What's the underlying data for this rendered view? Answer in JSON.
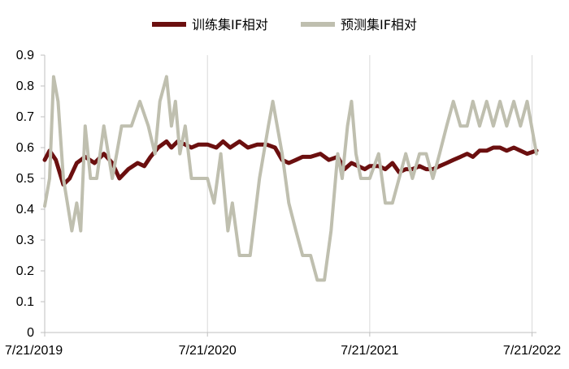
{
  "chart_data": {
    "type": "line",
    "title": "",
    "xlabel": "",
    "ylabel": "",
    "ylim": [
      0,
      0.9
    ],
    "yticks": [
      0,
      0.1,
      0.2,
      0.3,
      0.4,
      0.5,
      0.6,
      0.7,
      0.8,
      0.9
    ],
    "ytick_labels": [
      "0",
      "0.1",
      "0.2",
      "0.3",
      "0.4",
      "0.5",
      "0.6",
      "0.7",
      "0.8",
      "0.9"
    ],
    "xlim": [
      "2019-07-21",
      "2022-07-31"
    ],
    "xticks": [
      "2019-07-21",
      "2020-07-21",
      "2021-07-21",
      "2022-07-21"
    ],
    "xtick_labels": [
      "7/21/2019",
      "7/21/2020",
      "7/21/2021",
      "7/21/2022"
    ],
    "grid": {
      "vertical": true,
      "horizontal": false
    },
    "legend_position": "top-center",
    "series": [
      {
        "name": "训练集IF相对",
        "color": "#6b0f0f",
        "points": [
          [
            "2019-07-21",
            0.56
          ],
          [
            "2019-08-01",
            0.59
          ],
          [
            "2019-08-15",
            0.56
          ],
          [
            "2019-09-01",
            0.48
          ],
          [
            "2019-09-15",
            0.5
          ],
          [
            "2019-10-01",
            0.55
          ],
          [
            "2019-10-20",
            0.57
          ],
          [
            "2019-11-10",
            0.55
          ],
          [
            "2019-12-01",
            0.58
          ],
          [
            "2019-12-20",
            0.55
          ],
          [
            "2020-01-05",
            0.5
          ],
          [
            "2020-01-25",
            0.53
          ],
          [
            "2020-02-15",
            0.55
          ],
          [
            "2020-03-01",
            0.54
          ],
          [
            "2020-03-15",
            0.57
          ],
          [
            "2020-04-01",
            0.6
          ],
          [
            "2020-04-20",
            0.62
          ],
          [
            "2020-05-01",
            0.6
          ],
          [
            "2020-05-15",
            0.62
          ],
          [
            "2020-06-01",
            0.61
          ],
          [
            "2020-06-15",
            0.6
          ],
          [
            "2020-07-01",
            0.61
          ],
          [
            "2020-07-21",
            0.61
          ],
          [
            "2020-08-10",
            0.6
          ],
          [
            "2020-08-25",
            0.62
          ],
          [
            "2020-09-10",
            0.6
          ],
          [
            "2020-10-01",
            0.62
          ],
          [
            "2020-10-20",
            0.6
          ],
          [
            "2020-11-10",
            0.61
          ],
          [
            "2020-12-01",
            0.61
          ],
          [
            "2020-12-20",
            0.6
          ],
          [
            "2021-01-05",
            0.56
          ],
          [
            "2021-01-20",
            0.55
          ],
          [
            "2021-02-05",
            0.56
          ],
          [
            "2021-02-20",
            0.57
          ],
          [
            "2021-03-10",
            0.57
          ],
          [
            "2021-04-01",
            0.58
          ],
          [
            "2021-04-20",
            0.56
          ],
          [
            "2021-05-10",
            0.57
          ],
          [
            "2021-05-25",
            0.53
          ],
          [
            "2021-06-10",
            0.55
          ],
          [
            "2021-06-25",
            0.54
          ],
          [
            "2021-07-10",
            0.53
          ],
          [
            "2021-07-21",
            0.54
          ],
          [
            "2021-08-10",
            0.54
          ],
          [
            "2021-08-25",
            0.53
          ],
          [
            "2021-09-10",
            0.55
          ],
          [
            "2021-09-25",
            0.52
          ],
          [
            "2021-10-10",
            0.53
          ],
          [
            "2021-10-25",
            0.53
          ],
          [
            "2021-11-10",
            0.54
          ],
          [
            "2021-11-25",
            0.53
          ],
          [
            "2021-12-10",
            0.53
          ],
          [
            "2021-12-25",
            0.54
          ],
          [
            "2022-01-10",
            0.55
          ],
          [
            "2022-01-25",
            0.56
          ],
          [
            "2022-02-10",
            0.57
          ],
          [
            "2022-02-25",
            0.58
          ],
          [
            "2022-03-10",
            0.57
          ],
          [
            "2022-03-25",
            0.59
          ],
          [
            "2022-04-10",
            0.59
          ],
          [
            "2022-04-25",
            0.6
          ],
          [
            "2022-05-10",
            0.6
          ],
          [
            "2022-05-25",
            0.59
          ],
          [
            "2022-06-10",
            0.6
          ],
          [
            "2022-06-25",
            0.59
          ],
          [
            "2022-07-10",
            0.58
          ],
          [
            "2022-07-31",
            0.59
          ]
        ]
      },
      {
        "name": "预测集IF相对",
        "color": "#bfbfaf",
        "points": [
          [
            "2019-07-21",
            0.41
          ],
          [
            "2019-08-01",
            0.5
          ],
          [
            "2019-08-10",
            0.83
          ],
          [
            "2019-08-20",
            0.75
          ],
          [
            "2019-09-01",
            0.5
          ],
          [
            "2019-09-10",
            0.42
          ],
          [
            "2019-09-20",
            0.33
          ],
          [
            "2019-10-01",
            0.42
          ],
          [
            "2019-10-10",
            0.33
          ],
          [
            "2019-10-20",
            0.67
          ],
          [
            "2019-11-01",
            0.5
          ],
          [
            "2019-11-15",
            0.5
          ],
          [
            "2019-12-01",
            0.67
          ],
          [
            "2019-12-20",
            0.5
          ],
          [
            "2020-01-10",
            0.67
          ],
          [
            "2020-02-01",
            0.67
          ],
          [
            "2020-02-20",
            0.75
          ],
          [
            "2020-03-10",
            0.67
          ],
          [
            "2020-03-25",
            0.58
          ],
          [
            "2020-04-05",
            0.75
          ],
          [
            "2020-04-20",
            0.83
          ],
          [
            "2020-05-01",
            0.67
          ],
          [
            "2020-05-10",
            0.75
          ],
          [
            "2020-05-20",
            0.58
          ],
          [
            "2020-06-01",
            0.67
          ],
          [
            "2020-06-15",
            0.5
          ],
          [
            "2020-07-01",
            0.5
          ],
          [
            "2020-07-21",
            0.5
          ],
          [
            "2020-08-05",
            0.42
          ],
          [
            "2020-08-20",
            0.58
          ],
          [
            "2020-09-05",
            0.33
          ],
          [
            "2020-09-15",
            0.42
          ],
          [
            "2020-10-01",
            0.25
          ],
          [
            "2020-10-25",
            0.25
          ],
          [
            "2020-11-15",
            0.5
          ],
          [
            "2020-12-05",
            0.67
          ],
          [
            "2020-12-15",
            0.75
          ],
          [
            "2021-01-05",
            0.58
          ],
          [
            "2021-01-20",
            0.42
          ],
          [
            "2021-02-05",
            0.33
          ],
          [
            "2021-02-20",
            0.25
          ],
          [
            "2021-03-10",
            0.25
          ],
          [
            "2021-03-25",
            0.17
          ],
          [
            "2021-04-10",
            0.17
          ],
          [
            "2021-04-25",
            0.33
          ],
          [
            "2021-05-10",
            0.58
          ],
          [
            "2021-05-20",
            0.5
          ],
          [
            "2021-06-01",
            0.67
          ],
          [
            "2021-06-10",
            0.75
          ],
          [
            "2021-06-20",
            0.58
          ],
          [
            "2021-07-01",
            0.5
          ],
          [
            "2021-07-21",
            0.5
          ],
          [
            "2021-08-10",
            0.58
          ],
          [
            "2021-08-25",
            0.42
          ],
          [
            "2021-09-10",
            0.42
          ],
          [
            "2021-09-25",
            0.5
          ],
          [
            "2021-10-10",
            0.58
          ],
          [
            "2021-10-25",
            0.5
          ],
          [
            "2021-11-10",
            0.58
          ],
          [
            "2021-11-25",
            0.58
          ],
          [
            "2021-12-10",
            0.5
          ],
          [
            "2021-12-25",
            0.58
          ],
          [
            "2022-01-10",
            0.67
          ],
          [
            "2022-01-25",
            0.75
          ],
          [
            "2022-02-10",
            0.67
          ],
          [
            "2022-02-25",
            0.67
          ],
          [
            "2022-03-10",
            0.75
          ],
          [
            "2022-03-25",
            0.67
          ],
          [
            "2022-04-10",
            0.75
          ],
          [
            "2022-04-25",
            0.67
          ],
          [
            "2022-05-10",
            0.75
          ],
          [
            "2022-05-25",
            0.67
          ],
          [
            "2022-06-10",
            0.75
          ],
          [
            "2022-06-25",
            0.67
          ],
          [
            "2022-07-10",
            0.75
          ],
          [
            "2022-07-31",
            0.58
          ]
        ]
      }
    ]
  }
}
